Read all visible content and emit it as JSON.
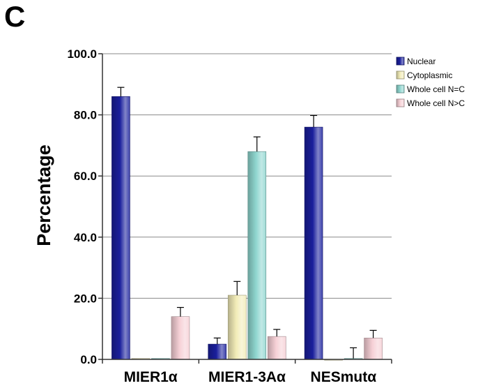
{
  "panel_label": "C",
  "chart_data": {
    "type": "bar",
    "title": "",
    "xlabel": "",
    "ylabel": "Percentage",
    "ylim": [
      0,
      100
    ],
    "yticks": [
      "0.0",
      "20.0",
      "40.0",
      "60.0",
      "80.0",
      "100.0"
    ],
    "grid": true,
    "legend_position": "top-right",
    "categories": [
      "MIER1α",
      "MIER1-3Aα",
      "NESmutα"
    ],
    "series": [
      {
        "name": "Nuclear",
        "color": "#1a1f9c",
        "values": [
          86,
          5,
          76
        ],
        "errors": [
          3,
          2,
          3.8
        ]
      },
      {
        "name": "Cytoplasmic",
        "color": "#f2ecb8",
        "values": [
          0.3,
          21,
          0
        ],
        "errors": [
          0,
          4.5,
          0
        ]
      },
      {
        "name": "Whole cell N=C",
        "color": "#8fd6cf",
        "values": [
          0.3,
          68,
          0.3
        ],
        "errors": [
          0,
          4.8,
          3.5
        ]
      },
      {
        "name": "Whole cell N>C",
        "color": "#f6d0d6",
        "values": [
          14,
          7.5,
          7
        ],
        "errors": [
          3,
          2.3,
          2.5
        ]
      }
    ]
  }
}
